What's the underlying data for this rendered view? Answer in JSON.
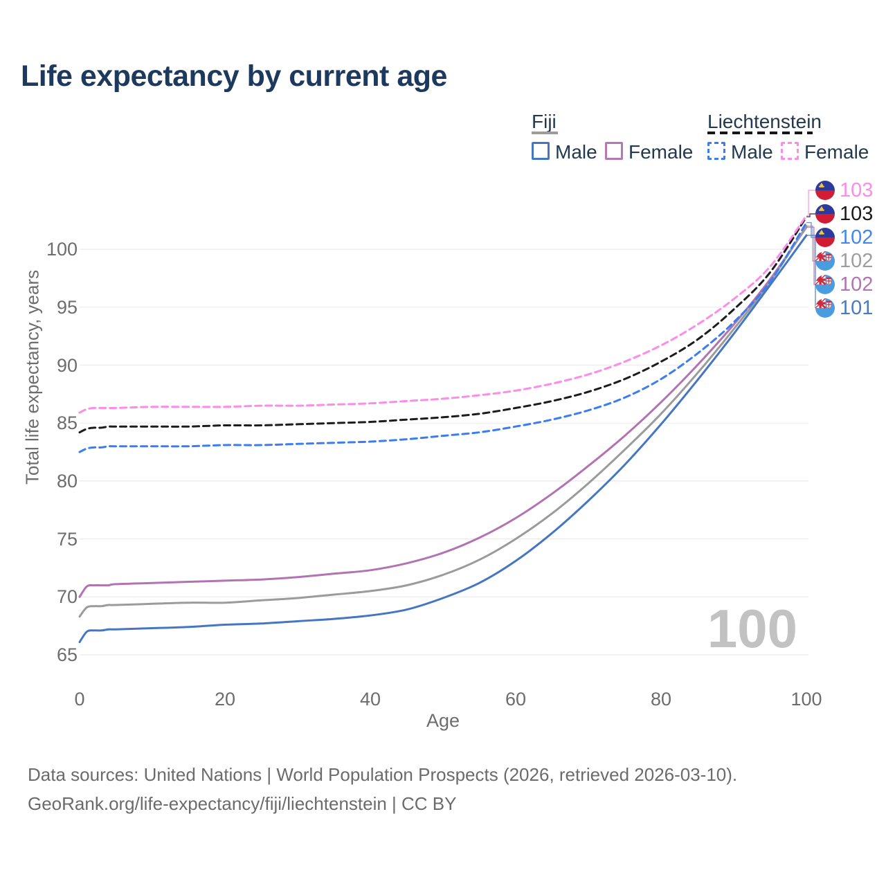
{
  "title": "Life expectancy by current age",
  "legend": {
    "groups": [
      {
        "label": "Fiji",
        "underline_style": "solid",
        "underline_color": "#9c9c9c",
        "items": [
          {
            "label": "Male",
            "color": "#4576c2",
            "dash": false
          },
          {
            "label": "Female",
            "color": "#b478b4",
            "dash": false
          }
        ]
      },
      {
        "label": "Liechtenstein",
        "underline_style": "dashed",
        "underline_color": "#161616",
        "items": [
          {
            "label": "Male",
            "color": "#3b7df0",
            "dash": true
          },
          {
            "label": "Female",
            "color": "#fb8ce8",
            "dash": true
          }
        ]
      }
    ]
  },
  "chart_data": {
    "type": "line",
    "title": "Life expectancy by current age",
    "xlabel": "Age",
    "ylabel": "Total life expectancy, years",
    "x_ticks": [
      0,
      20,
      40,
      60,
      80,
      100
    ],
    "y_ticks": [
      65,
      70,
      75,
      80,
      85,
      90,
      95,
      100
    ],
    "xlim": [
      0,
      100
    ],
    "ylim": [
      64,
      103.5
    ],
    "grid": "horizontal",
    "grid_color": "#ececec",
    "hover_age_watermark": "100",
    "x": [
      0,
      1,
      2,
      3,
      4,
      5,
      10,
      15,
      20,
      25,
      30,
      35,
      40,
      45,
      50,
      55,
      60,
      65,
      70,
      75,
      80,
      85,
      90,
      95,
      100
    ],
    "series": [
      {
        "name": "Fiji Female",
        "country": "Fiji",
        "sex": "Female",
        "color": "#b273b2",
        "line_style": "solid",
        "values": [
          70.0,
          70.9,
          71.0,
          71.0,
          71.0,
          71.1,
          71.2,
          71.3,
          71.4,
          71.5,
          71.7,
          72.0,
          72.3,
          72.9,
          73.8,
          75.1,
          76.8,
          78.9,
          81.3,
          83.9,
          86.8,
          90.0,
          93.5,
          97.4,
          101.9
        ]
      },
      {
        "name": "Fiji Both sexes",
        "country": "Fiji",
        "sex": "Both",
        "color": "#9b9b9b",
        "line_style": "solid",
        "values": [
          68.3,
          69.1,
          69.2,
          69.2,
          69.3,
          69.3,
          69.4,
          69.5,
          69.5,
          69.7,
          69.9,
          70.2,
          70.5,
          71.0,
          71.9,
          73.2,
          75.0,
          77.2,
          79.8,
          82.7,
          85.8,
          89.3,
          93.1,
          97.2,
          102.0
        ]
      },
      {
        "name": "Fiji Male",
        "country": "Fiji",
        "sex": "Male",
        "color": "#4576c2",
        "line_style": "solid",
        "values": [
          66.1,
          67.0,
          67.1,
          67.1,
          67.2,
          67.2,
          67.3,
          67.4,
          67.6,
          67.7,
          67.9,
          68.1,
          68.4,
          68.9,
          69.9,
          71.2,
          73.1,
          75.5,
          78.3,
          81.4,
          84.9,
          88.7,
          92.7,
          96.9,
          101.2
        ]
      },
      {
        "name": "Liechtenstein Male",
        "country": "Liechtenstein",
        "sex": "Male",
        "color": "#3b7df0",
        "line_style": "dashed",
        "values": [
          82.5,
          82.8,
          82.9,
          82.9,
          83.0,
          83.0,
          83.0,
          83.0,
          83.1,
          83.1,
          83.2,
          83.3,
          83.4,
          83.6,
          83.9,
          84.2,
          84.7,
          85.3,
          86.1,
          87.2,
          88.8,
          91.0,
          93.7,
          97.2,
          102.3
        ]
      },
      {
        "name": "Liechtenstein Both sexes",
        "country": "Liechtenstein",
        "sex": "Both",
        "color": "#1c1c1c",
        "line_style": "dashed",
        "values": [
          84.2,
          84.5,
          84.6,
          84.6,
          84.7,
          84.7,
          84.7,
          84.7,
          84.8,
          84.8,
          84.9,
          85.0,
          85.1,
          85.3,
          85.5,
          85.8,
          86.3,
          86.9,
          87.7,
          88.8,
          90.3,
          92.2,
          94.8,
          98.0,
          102.8
        ]
      },
      {
        "name": "Liechtenstein Female",
        "country": "Liechtenstein",
        "sex": "Female",
        "color": "#fb8ce8",
        "line_style": "dashed",
        "values": [
          85.9,
          86.2,
          86.3,
          86.3,
          86.3,
          86.3,
          86.4,
          86.4,
          86.4,
          86.5,
          86.5,
          86.6,
          86.7,
          86.9,
          87.1,
          87.4,
          87.8,
          88.4,
          89.2,
          90.3,
          91.7,
          93.5,
          95.7,
          98.5,
          102.9
        ]
      }
    ],
    "end_labels": [
      {
        "value": "103",
        "color": "#fb8ce8",
        "flag": "liechtenstein",
        "series": "Liechtenstein Female"
      },
      {
        "value": "103",
        "color": "#1a1a1a",
        "flag": "liechtenstein",
        "series": "Liechtenstein Both sexes"
      },
      {
        "value": "102",
        "color": "#4285f4",
        "flag": "liechtenstein",
        "series": "Liechtenstein Male"
      },
      {
        "value": "102",
        "color": "#9e9e9e",
        "flag": "fiji",
        "series": "Fiji Both sexes"
      },
      {
        "value": "102",
        "color": "#b273b2",
        "flag": "fiji",
        "series": "Fiji Female"
      },
      {
        "value": "101",
        "color": "#4a7ac0",
        "flag": "fiji",
        "series": "Fiji Male"
      }
    ]
  },
  "footer": {
    "line1": "Data sources: United Nations | World Population Prospects (2026, retrieved 2026-03-10).",
    "line2": "GeoRank.org/life-expectancy/fiji/liechtenstein | CC BY"
  }
}
